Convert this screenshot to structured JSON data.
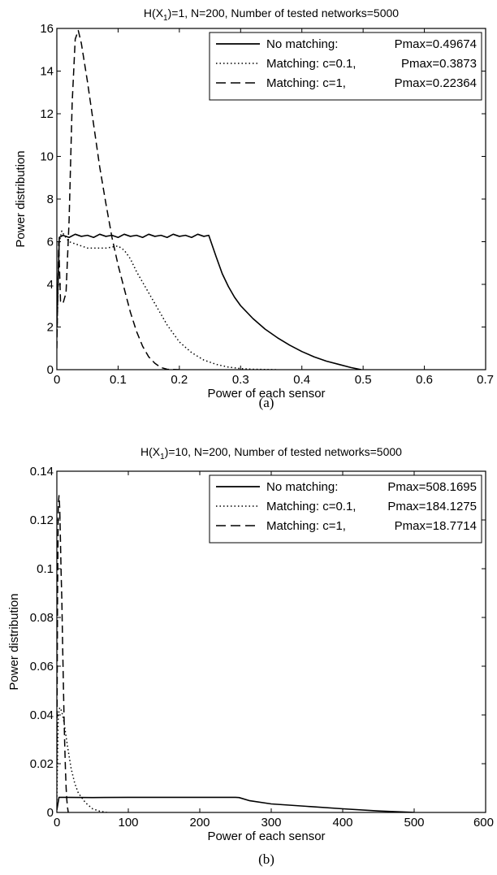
{
  "chart_data": [
    {
      "type": "line",
      "title": "H(X1)=1, N=200, Number of tested networks=5000",
      "title_parts": {
        "pre": "H(X",
        "sub": "1",
        "post": ")=1, N=200, Number of tested networks=5000"
      },
      "xlabel": "Power of each sensor",
      "ylabel": "Power distribution",
      "caption": "(a)",
      "xlim": [
        0,
        0.7
      ],
      "ylim": [
        0,
        16
      ],
      "xticks": [
        0,
        0.1,
        0.2,
        0.3,
        0.4,
        0.5,
        0.6,
        0.7
      ],
      "xtick_labels": [
        "0",
        "0.1",
        "0.2",
        "0.3",
        "0.4",
        "0.5",
        "0.6",
        "0.7"
      ],
      "yticks": [
        0,
        2,
        4,
        6,
        8,
        10,
        12,
        14,
        16
      ],
      "ytick_labels": [
        "0",
        "2",
        "4",
        "6",
        "8",
        "10",
        "12",
        "14",
        "16"
      ],
      "grid": false,
      "legend_position": "top-right",
      "series": [
        {
          "name": "No matching:        Pmax=0.49674",
          "legend_label": "No matching:",
          "legend_value": "Pmax=0.49674",
          "style": "solid",
          "color": "#000000",
          "x": [
            0,
            0.004,
            0.01,
            0.02,
            0.03,
            0.04,
            0.05,
            0.06,
            0.07,
            0.08,
            0.09,
            0.1,
            0.11,
            0.12,
            0.13,
            0.14,
            0.15,
            0.16,
            0.17,
            0.18,
            0.19,
            0.2,
            0.21,
            0.22,
            0.23,
            0.24,
            0.248,
            0.26,
            0.27,
            0.28,
            0.29,
            0.3,
            0.32,
            0.34,
            0.36,
            0.38,
            0.4,
            0.42,
            0.44,
            0.46,
            0.48,
            0.497
          ],
          "y": [
            2.0,
            6.2,
            6.3,
            6.2,
            6.35,
            6.25,
            6.3,
            6.2,
            6.35,
            6.25,
            6.3,
            6.2,
            6.35,
            6.25,
            6.3,
            6.2,
            6.35,
            6.25,
            6.3,
            6.2,
            6.35,
            6.25,
            6.3,
            6.2,
            6.35,
            6.25,
            6.3,
            5.3,
            4.5,
            3.9,
            3.4,
            3.0,
            2.4,
            1.9,
            1.5,
            1.15,
            0.85,
            0.6,
            0.4,
            0.25,
            0.1,
            0.0
          ]
        },
        {
          "name": "Matching: c=0.1, Pmax=0.3873",
          "legend_label": "Matching: c=0.1,",
          "legend_value": "Pmax=0.3873",
          "style": "dotted",
          "color": "#000000",
          "x": [
            0,
            0.004,
            0.008,
            0.012,
            0.02,
            0.03,
            0.04,
            0.05,
            0.06,
            0.07,
            0.08,
            0.09,
            0.1,
            0.11,
            0.12,
            0.13,
            0.14,
            0.15,
            0.16,
            0.17,
            0.18,
            0.19,
            0.2,
            0.22,
            0.24,
            0.26,
            0.28,
            0.3,
            0.32,
            0.34,
            0.36
          ],
          "y": [
            1.5,
            6.0,
            6.5,
            6.3,
            6.0,
            5.9,
            5.8,
            5.7,
            5.7,
            5.7,
            5.7,
            5.75,
            5.8,
            5.6,
            5.2,
            4.6,
            4.1,
            3.6,
            3.1,
            2.6,
            2.1,
            1.7,
            1.3,
            0.8,
            0.45,
            0.25,
            0.12,
            0.05,
            0.02,
            0.01,
            0.0
          ]
        },
        {
          "name": "Matching: c=1,       Pmax=0.22364",
          "legend_label": "Matching: c=1,",
          "legend_value": "Pmax=0.22364",
          "style": "dashed",
          "color": "#000000",
          "x": [
            0,
            0.003,
            0.006,
            0.01,
            0.015,
            0.02,
            0.025,
            0.03,
            0.035,
            0.04,
            0.05,
            0.06,
            0.07,
            0.08,
            0.09,
            0.1,
            0.11,
            0.12,
            0.13,
            0.14,
            0.15,
            0.16,
            0.17,
            0.18,
            0.2
          ],
          "y": [
            1.0,
            6.0,
            3.2,
            3.1,
            3.6,
            7.0,
            12.5,
            15.5,
            15.9,
            15.3,
            13.5,
            11.5,
            9.5,
            7.8,
            6.2,
            4.9,
            3.8,
            2.7,
            1.8,
            1.1,
            0.6,
            0.3,
            0.1,
            0.02,
            0.0
          ]
        }
      ]
    },
    {
      "type": "line",
      "title": "H(X1)=10, N=200, Number of tested networks=5000",
      "title_parts": {
        "pre": "H(X",
        "sub": "1",
        "post": ")=10, N=200, Number of tested networks=5000"
      },
      "xlabel": "Power of each sensor",
      "ylabel": "Power distribution",
      "caption": "(b)",
      "xlim": [
        0,
        600
      ],
      "ylim": [
        0,
        0.14
      ],
      "xticks": [
        0,
        100,
        200,
        300,
        400,
        500,
        600
      ],
      "xtick_labels": [
        "0",
        "100",
        "200",
        "300",
        "400",
        "500",
        "600"
      ],
      "yticks": [
        0,
        0.02,
        0.04,
        0.06,
        0.08,
        0.1,
        0.12,
        0.14
      ],
      "ytick_labels": [
        "0",
        "0.02",
        "0.04",
        "0.06",
        "0.08",
        "0.1",
        "0.12",
        "0.14"
      ],
      "grid": false,
      "legend_position": "top-right",
      "series": [
        {
          "name": "No matching:        Pmax=508.1695",
          "legend_label": "No matching:",
          "legend_value": "Pmax=508.1695",
          "style": "solid",
          "color": "#000000",
          "x": [
            0,
            3,
            10,
            50,
            100,
            150,
            200,
            250,
            255,
            270,
            300,
            350,
            400,
            450,
            500
          ],
          "y": [
            0.001,
            0.0062,
            0.0062,
            0.0061,
            0.0062,
            0.0062,
            0.0062,
            0.0062,
            0.0061,
            0.0048,
            0.0035,
            0.0025,
            0.0015,
            0.0006,
            0.0
          ]
        },
        {
          "name": "Matching: c=0.1, Pmax=184.1275",
          "legend_label": "Matching: c=0.1,",
          "legend_value": "Pmax=184.1275",
          "style": "dotted",
          "color": "#000000",
          "x": [
            0,
            2,
            4,
            6,
            8,
            10,
            12,
            15,
            20,
            25,
            30,
            40,
            50,
            60,
            70
          ],
          "y": [
            0.005,
            0.04,
            0.043,
            0.042,
            0.04,
            0.037,
            0.033,
            0.027,
            0.018,
            0.012,
            0.008,
            0.004,
            0.0015,
            0.0005,
            0.0
          ]
        },
        {
          "name": "Matching: c=1,       Pmax=18.7714",
          "legend_label": "Matching: c=1,",
          "legend_value": "Pmax=18.7714",
          "style": "dashed",
          "color": "#000000",
          "x": [
            0,
            1,
            2,
            3,
            4,
            5,
            6,
            7,
            8,
            9,
            10,
            11,
            12,
            13,
            14,
            15,
            16
          ],
          "y": [
            0.02,
            0.09,
            0.126,
            0.13,
            0.125,
            0.112,
            0.098,
            0.087,
            0.07,
            0.055,
            0.04,
            0.028,
            0.018,
            0.01,
            0.005,
            0.002,
            0.0
          ]
        }
      ]
    }
  ]
}
